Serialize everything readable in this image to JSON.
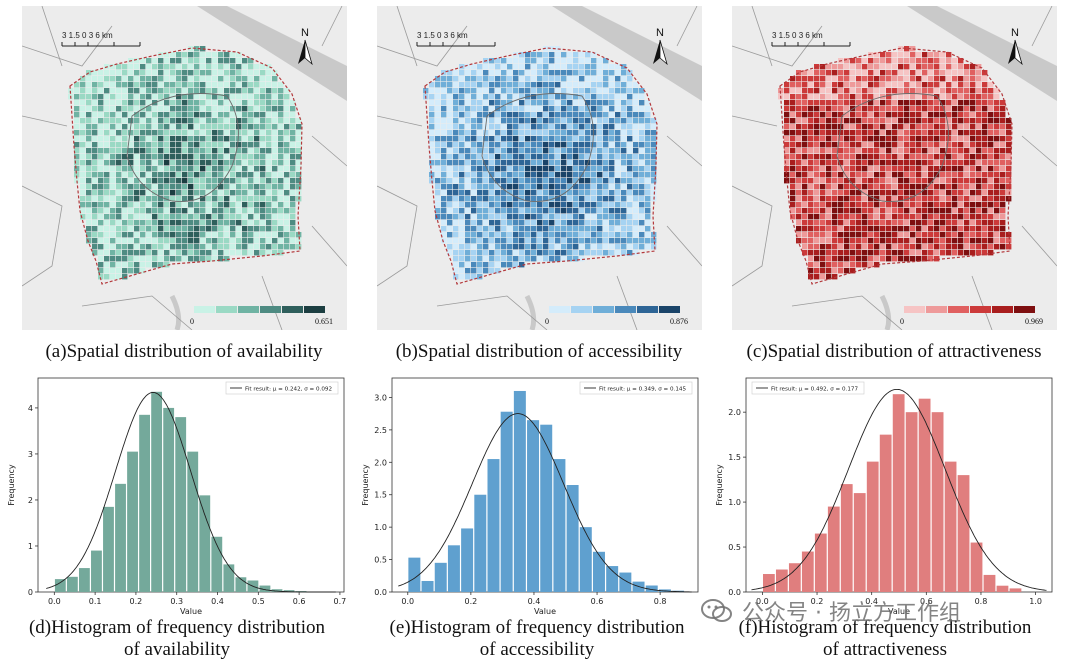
{
  "maps": [
    {
      "caption": "(a)Spatial distribution of availability",
      "scale_text": "3 1.5 0     3     6 km",
      "north": "N",
      "legend_min": "0",
      "legend_max": "0.651",
      "palette": [
        "#c9f2e6",
        "#9ad9c4",
        "#6fb3a3",
        "#4e8b82",
        "#2f5f5c",
        "#1c3e41"
      ]
    },
    {
      "caption": "(b)Spatial distribution of accessibility",
      "scale_text": "3 1.5 0     3     6 km",
      "north": "N",
      "legend_min": "0",
      "legend_max": "0.876",
      "palette": [
        "#d4ecfb",
        "#a6d3f2",
        "#6faed8",
        "#4a89bb",
        "#2e6596",
        "#1a4469"
      ]
    },
    {
      "caption": "(c)Spatial distribution of attractiveness",
      "scale_text": "3 1.5 0     3     6 km",
      "north": "N",
      "legend_min": "0",
      "legend_max": "0.969",
      "palette": [
        "#f6c4c4",
        "#ee9a9a",
        "#e06060",
        "#cc3a3a",
        "#a91e1e",
        "#7e0f10"
      ]
    }
  ],
  "chart_data": [
    {
      "type": "bar",
      "title": "(d)Histogram of frequency distribution of availability",
      "caption_line1": "(d)Histogram of frequency distribution",
      "caption_line2": "of availability",
      "xlabel": "Value",
      "ylabel": "Frequency",
      "legend": "Fit result: μ = 0.242, σ = 0.092",
      "bar_color": "#74a99b",
      "xlim": [
        -0.04,
        0.71
      ],
      "ylim": [
        0,
        4.65
      ],
      "xticks": [
        "0.0",
        "0.1",
        "0.2",
        "0.3",
        "0.4",
        "0.5",
        "0.6",
        "0.7"
      ],
      "xtick_values": [
        0.0,
        0.1,
        0.2,
        0.3,
        0.4,
        0.5,
        0.6,
        0.7
      ],
      "yticks": [
        "0",
        "1",
        "2",
        "3",
        "4"
      ],
      "ytick_values": [
        0,
        1,
        2,
        3,
        4
      ],
      "bin_width": 0.0295,
      "bins": [
        0.0,
        0.0295,
        0.059,
        0.0885,
        0.118,
        0.1475,
        0.177,
        0.2065,
        0.236,
        0.2655,
        0.295,
        0.3245,
        0.354,
        0.3835,
        0.413,
        0.4425,
        0.472,
        0.5015,
        0.531,
        0.5605,
        0.59
      ],
      "values": [
        0.28,
        0.33,
        0.52,
        0.9,
        1.85,
        2.35,
        3.05,
        3.85,
        4.35,
        4.0,
        3.8,
        3.05,
        2.1,
        1.2,
        0.6,
        0.32,
        0.25,
        0.14,
        0.06,
        0.04,
        0.02
      ],
      "fit": {
        "mu": 0.242,
        "sigma": 0.092
      }
    },
    {
      "type": "bar",
      "title": "(e)Histogram of frequency distribution of accessibility",
      "caption_line1": "(e)Histogram of frequency distribution",
      "caption_line2": "of accessibility",
      "xlabel": "Value",
      "ylabel": "Frequency",
      "legend": "Fit result: μ = 0.349, σ = 0.145",
      "bar_color": "#5fa0cf",
      "xlim": [
        -0.05,
        0.92
      ],
      "ylim": [
        0,
        3.3
      ],
      "xticks": [
        "0.0",
        "0.2",
        "0.4",
        "0.6",
        "0.8"
      ],
      "xtick_values": [
        0.0,
        0.2,
        0.4,
        0.6,
        0.8
      ],
      "yticks": [
        "0.0",
        "0.5",
        "1.0",
        "1.5",
        "2.0",
        "2.5",
        "3.0"
      ],
      "ytick_values": [
        0.0,
        0.5,
        1.0,
        1.5,
        2.0,
        2.5,
        3.0
      ],
      "bin_width": 0.0418,
      "bins": [
        0.0,
        0.0418,
        0.0836,
        0.1254,
        0.1672,
        0.209,
        0.2508,
        0.2926,
        0.3344,
        0.3762,
        0.418,
        0.4598,
        0.5016,
        0.5434,
        0.5852,
        0.627,
        0.6688,
        0.7106,
        0.7524,
        0.7942,
        0.836
      ],
      "values": [
        0.53,
        0.17,
        0.45,
        0.72,
        0.98,
        1.5,
        2.05,
        2.78,
        3.1,
        2.65,
        2.58,
        2.05,
        1.65,
        1.0,
        0.62,
        0.4,
        0.3,
        0.16,
        0.1,
        0.04,
        0.02
      ],
      "fit": {
        "mu": 0.349,
        "sigma": 0.145
      }
    },
    {
      "type": "bar",
      "title": "(f)Histogram of frequency distribution of attractiveness",
      "caption_line1": "(f)Histogram of frequency distribution",
      "caption_line2": "of attractiveness",
      "xlabel": "Value",
      "ylabel": "Frequency",
      "legend": "Fit result: μ = 0.492, σ = 0.177",
      "bar_color": "#e07e7e",
      "xlim": [
        -0.06,
        1.06
      ],
      "ylim": [
        0,
        2.38
      ],
      "xticks": [
        "0.0",
        "0.2",
        "0.4",
        "0.6",
        "0.8",
        "1.0"
      ],
      "xtick_values": [
        0.0,
        0.2,
        0.4,
        0.6,
        0.8,
        1.0
      ],
      "yticks": [
        "0.0",
        "0.5",
        "1.0",
        "1.5",
        "2.0"
      ],
      "ytick_values": [
        0.0,
        0.5,
        1.0,
        1.5,
        2.0
      ],
      "bin_width": 0.0475,
      "bins": [
        0.0,
        0.0475,
        0.095,
        0.1425,
        0.19,
        0.2375,
        0.285,
        0.3325,
        0.38,
        0.4275,
        0.475,
        0.5225,
        0.57,
        0.6175,
        0.665,
        0.7125,
        0.76,
        0.8075,
        0.855,
        0.9025
      ],
      "values": [
        0.2,
        0.25,
        0.32,
        0.45,
        0.65,
        0.95,
        1.2,
        1.1,
        1.45,
        1.75,
        2.2,
        2.0,
        2.15,
        2.0,
        1.45,
        1.3,
        0.55,
        0.19,
        0.07,
        0.04
      ],
      "fit": {
        "mu": 0.492,
        "sigma": 0.177
      }
    }
  ],
  "watermark": "公众号 · 扬立方工作组"
}
